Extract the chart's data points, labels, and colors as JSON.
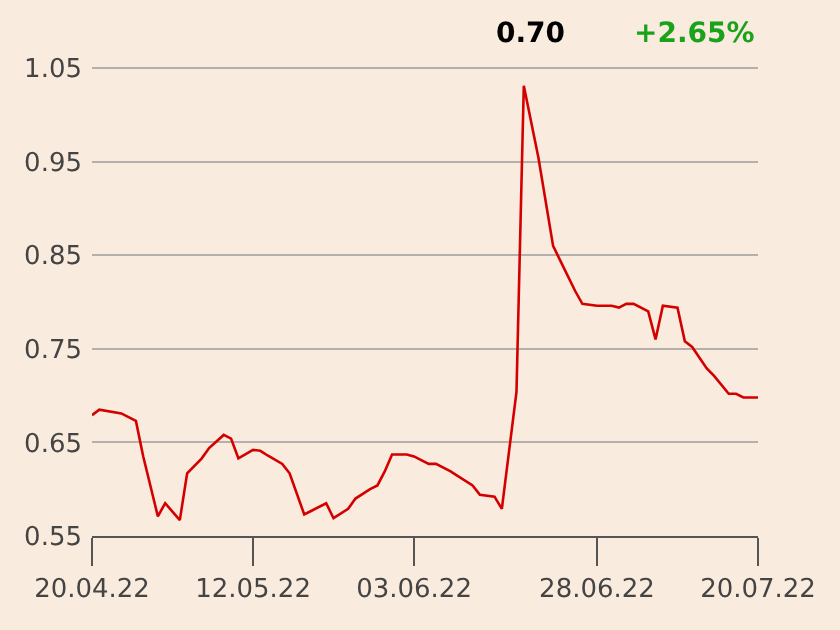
{
  "chart_data": {
    "type": "line",
    "annotations": [
      "0.70",
      "+2.65%"
    ],
    "ylim": [
      0.55,
      1.05
    ],
    "yticks": [
      0.55,
      0.65,
      0.75,
      0.85,
      0.95,
      1.05
    ],
    "xlim": [
      "2022-04-20",
      "2022-07-20"
    ],
    "xticks": [
      {
        "value": "2022-04-20",
        "label": "20.04.22"
      },
      {
        "value": "2022-05-12",
        "label": "12.05.22"
      },
      {
        "value": "2022-06-03",
        "label": "03.06.22"
      },
      {
        "value": "2022-06-28",
        "label": "28.06.22"
      },
      {
        "value": "2022-07-20",
        "label": "20.07.22"
      }
    ],
    "grid": "y",
    "marker": "none",
    "line_style": "solid",
    "series": [
      {
        "color": "#d40000",
        "x": [
          "2022-04-20",
          "2022-04-21",
          "2022-04-24",
          "2022-04-26",
          "2022-04-27",
          "2022-04-29",
          "2022-04-30",
          "2022-05-02",
          "2022-05-03",
          "2022-05-05",
          "2022-05-06",
          "2022-05-08",
          "2022-05-09",
          "2022-05-10",
          "2022-05-12",
          "2022-05-13",
          "2022-05-14",
          "2022-05-16",
          "2022-05-17",
          "2022-05-19",
          "2022-05-20",
          "2022-05-22",
          "2022-05-23",
          "2022-05-25",
          "2022-05-26",
          "2022-05-28",
          "2022-05-29",
          "2022-05-30",
          "2022-05-31",
          "2022-06-02",
          "2022-06-03",
          "2022-06-05",
          "2022-06-06",
          "2022-06-08",
          "2022-06-09",
          "2022-06-11",
          "2022-06-12",
          "2022-06-14",
          "2022-06-15",
          "2022-06-17",
          "2022-06-18",
          "2022-06-20",
          "2022-06-22",
          "2022-06-23",
          "2022-06-25",
          "2022-06-26",
          "2022-06-28",
          "2022-06-30",
          "2022-07-01",
          "2022-07-02",
          "2022-07-03",
          "2022-07-05",
          "2022-07-06",
          "2022-07-07",
          "2022-07-09",
          "2022-07-10",
          "2022-07-11",
          "2022-07-13",
          "2022-07-14",
          "2022-07-16",
          "2022-07-17",
          "2022-07-18",
          "2022-07-20"
        ],
        "values": [
          0.679,
          0.685,
          0.681,
          0.673,
          0.635,
          0.571,
          0.585,
          0.567,
          0.617,
          0.633,
          0.644,
          0.658,
          0.654,
          0.633,
          0.642,
          0.641,
          0.636,
          0.627,
          0.617,
          0.573,
          0.577,
          0.585,
          0.569,
          0.579,
          0.59,
          0.6,
          0.604,
          0.619,
          0.637,
          0.637,
          0.635,
          0.627,
          0.627,
          0.619,
          0.614,
          0.604,
          0.594,
          0.592,
          0.579,
          0.704,
          1.031,
          0.954,
          0.86,
          0.844,
          0.812,
          0.798,
          0.796,
          0.796,
          0.794,
          0.798,
          0.798,
          0.79,
          0.76,
          0.796,
          0.794,
          0.758,
          0.752,
          0.729,
          0.721,
          0.702,
          0.702,
          0.698,
          0.698
        ]
      }
    ]
  }
}
